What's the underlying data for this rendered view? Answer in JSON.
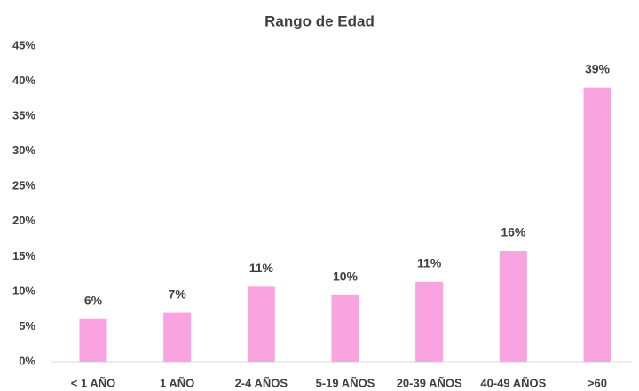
{
  "chart_data": {
    "type": "bar",
    "title": "Rango de Edad",
    "categories": [
      "< 1 AÑO",
      "1 AÑO",
      "2-4 AÑOS",
      "5-19 AÑOS",
      "20-39 AÑOS",
      "40-49 AÑOS",
      ">60"
    ],
    "values": [
      6.1,
      7.0,
      10.7,
      9.5,
      11.4,
      15.8,
      39.1
    ],
    "value_labels": [
      "6%",
      "7%",
      "11%",
      "10%",
      "11%",
      "16%",
      "39%"
    ],
    "color": "#f9a3e0",
    "ylim": [
      0,
      45
    ],
    "yticks": [
      {
        "value": 0,
        "label": "0%"
      },
      {
        "value": 5,
        "label": "5%"
      },
      {
        "value": 10,
        "label": "10%"
      },
      {
        "value": 15,
        "label": "15%"
      },
      {
        "value": 20,
        "label": "20%"
      },
      {
        "value": 25,
        "label": "25%"
      },
      {
        "value": 30,
        "label": "30%"
      },
      {
        "value": 35,
        "label": "35%"
      },
      {
        "value": 40,
        "label": "40%"
      },
      {
        "value": 45,
        "label": "45%"
      }
    ],
    "grid": false
  }
}
